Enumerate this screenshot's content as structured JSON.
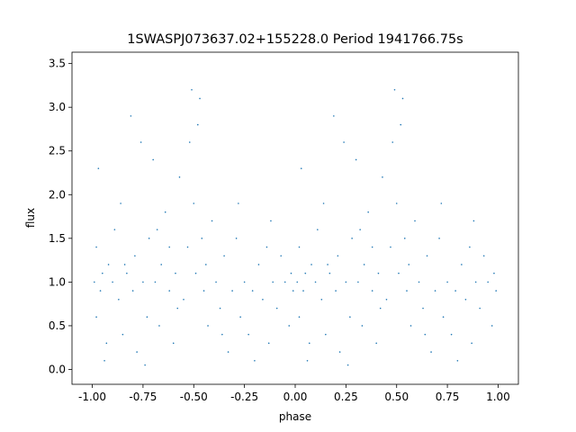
{
  "chart_data": {
    "type": "scatter",
    "title": "1SWASPJ073637.02+155228.0 Period 1941766.75s",
    "x_label": "phase",
    "y_label": "flux",
    "xlim": [
      -1.1,
      1.1
    ],
    "ylim": [
      -0.17,
      3.63
    ],
    "xticks": [
      {
        "value": -1,
        "label": "-1.00"
      },
      -0.75,
      {
        "value": -0.5,
        "label": "-0.50"
      },
      -0.25,
      {
        "value": 0,
        "label": "0.00"
      },
      0.25,
      {
        "value": 0.5,
        "label": "0.50"
      },
      0.75,
      {
        "value": 1,
        "label": "1.00"
      }
    ],
    "yticks": [
      {
        "value": 0,
        "label": "0.0"
      },
      0.5,
      {
        "value": 1,
        "label": "1.0"
      },
      1.5,
      {
        "value": 2,
        "label": "2.0"
      },
      2.5,
      {
        "value": 3,
        "label": "3.0"
      },
      3.5
    ],
    "series": [
      {
        "color": "#1f77b4",
        "x": [
          -0.99,
          -0.98,
          -0.98,
          -0.97,
          -0.96,
          -0.95,
          -0.93,
          -0.92,
          -0.9,
          -0.89,
          -0.87,
          -0.86,
          -0.85,
          -0.83,
          -0.81,
          -0.8,
          -0.79,
          -0.78,
          -0.76,
          -0.75,
          -0.73,
          -0.72,
          -0.7,
          -0.69,
          -0.67,
          -0.66,
          -0.64,
          -0.62,
          -0.6,
          -0.59,
          -0.57,
          -0.55,
          -0.53,
          -0.52,
          -0.51,
          -0.5,
          -0.49,
          -0.48,
          -0.47,
          -0.46,
          -0.45,
          -0.43,
          -0.41,
          -0.39,
          -0.37,
          -0.35,
          -0.33,
          -0.31,
          -0.29,
          -0.27,
          -0.25,
          -0.23,
          -0.21,
          -0.2,
          -0.18,
          -0.16,
          -0.14,
          -0.13,
          -0.11,
          -0.09,
          -0.07,
          -0.05,
          -0.03,
          -0.02,
          -0.01,
          -0.94,
          -0.74,
          -0.62,
          -0.44,
          -0.28,
          -0.12,
          -0.58,
          -0.68,
          -0.84,
          -0.36,
          0.01,
          0.02,
          0.02,
          0.03,
          0.04,
          0.05,
          0.07,
          0.08,
          0.1,
          0.11,
          0.13,
          0.14,
          0.15,
          0.17,
          0.19,
          0.2,
          0.21,
          0.22,
          0.24,
          0.25,
          0.27,
          0.28,
          0.3,
          0.31,
          0.33,
          0.34,
          0.36,
          0.38,
          0.4,
          0.41,
          0.43,
          0.45,
          0.47,
          0.48,
          0.49,
          0.5,
          0.51,
          0.52,
          0.53,
          0.54,
          0.55,
          0.57,
          0.59,
          0.61,
          0.63,
          0.65,
          0.67,
          0.69,
          0.71,
          0.73,
          0.75,
          0.77,
          0.79,
          0.8,
          0.82,
          0.84,
          0.86,
          0.87,
          0.89,
          0.91,
          0.93,
          0.95,
          0.97,
          0.98,
          0.99,
          0.06,
          0.26,
          0.38,
          0.56,
          0.72,
          0.88,
          0.42,
          0.32,
          0.16,
          0.64
        ],
        "y": [
          1.0,
          0.6,
          1.4,
          2.3,
          0.9,
          1.1,
          0.3,
          1.2,
          1.0,
          1.6,
          0.8,
          1.9,
          0.4,
          1.1,
          2.9,
          0.9,
          1.3,
          0.2,
          2.6,
          1.0,
          0.6,
          1.5,
          2.4,
          1.0,
          0.5,
          1.2,
          1.8,
          0.9,
          0.3,
          1.1,
          2.2,
          0.8,
          1.4,
          2.6,
          3.2,
          1.9,
          1.1,
          2.8,
          3.1,
          1.5,
          0.9,
          0.5,
          1.7,
          1.0,
          0.7,
          1.3,
          0.2,
          0.9,
          1.5,
          0.6,
          1.0,
          0.4,
          0.9,
          0.1,
          1.2,
          0.8,
          1.4,
          0.3,
          1.0,
          0.7,
          1.3,
          1.0,
          0.5,
          1.1,
          0.9,
          0.1,
          0.05,
          1.4,
          1.2,
          1.9,
          1.7,
          0.7,
          1.6,
          1.2,
          0.4,
          1.0,
          0.6,
          1.4,
          2.3,
          0.9,
          1.1,
          0.3,
          1.2,
          1.0,
          1.6,
          0.8,
          1.9,
          0.4,
          1.1,
          2.9,
          0.9,
          1.3,
          0.2,
          2.6,
          1.0,
          0.6,
          1.5,
          2.4,
          1.0,
          0.5,
          1.2,
          1.8,
          0.9,
          0.3,
          1.1,
          2.2,
          0.8,
          1.4,
          2.6,
          3.2,
          1.9,
          1.1,
          2.8,
          3.1,
          1.5,
          0.9,
          0.5,
          1.7,
          1.0,
          0.7,
          1.3,
          0.2,
          0.9,
          1.5,
          0.6,
          1.0,
          0.4,
          0.9,
          0.1,
          1.2,
          0.8,
          1.4,
          0.3,
          1.0,
          0.7,
          1.3,
          1.0,
          0.5,
          1.1,
          0.9,
          0.1,
          0.05,
          1.4,
          1.2,
          1.9,
          1.7,
          0.7,
          1.6,
          1.2,
          0.4
        ]
      }
    ]
  }
}
